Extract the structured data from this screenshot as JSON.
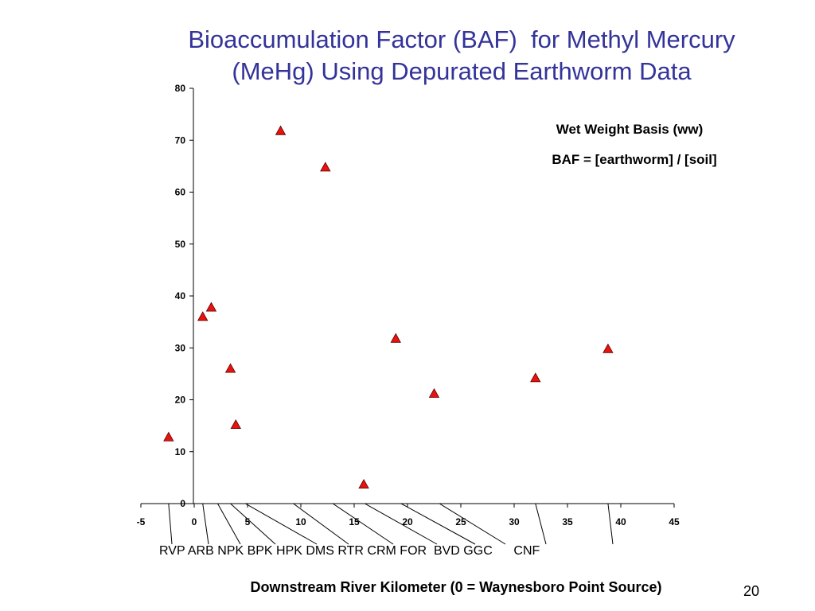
{
  "slide": {
    "title_line1": "Bioaccumulation Factor (BAF)  for Methyl Mercury",
    "title_line2": "(MeHg) Using Depurated Earthworm Data",
    "page_number": "20"
  },
  "chart_data": {
    "type": "scatter",
    "title": "",
    "xlabel": "Downstream River Kilometer (0 = Waynesboro Point Source)",
    "ylabel": "",
    "xlim": [
      -5,
      45
    ],
    "ylim": [
      0,
      80
    ],
    "x_ticks": [
      -5,
      0,
      5,
      10,
      15,
      20,
      25,
      30,
      35,
      40,
      45
    ],
    "y_ticks": [
      0,
      10,
      20,
      30,
      40,
      50,
      60,
      70,
      80
    ],
    "grid": false,
    "marker": "triangle",
    "marker_color": "#e8120e",
    "annotations": [
      "Wet Weight Basis (ww)",
      "BAF  =  [earthworm] / [soil]"
    ],
    "series": [
      {
        "points": [
          {
            "x": -2.4,
            "y": 12.8
          },
          {
            "x": 0.8,
            "y": 36.0
          },
          {
            "x": 1.6,
            "y": 37.8
          },
          {
            "x": 3.4,
            "y": 26.0
          },
          {
            "x": 3.9,
            "y": 15.2
          },
          {
            "x": 8.1,
            "y": 71.8
          },
          {
            "x": 12.3,
            "y": 64.8
          },
          {
            "x": 15.9,
            "y": 3.7
          },
          {
            "x": 18.9,
            "y": 31.8
          },
          {
            "x": 22.5,
            "y": 21.2
          },
          {
            "x": 32.0,
            "y": 24.2
          },
          {
            "x": 38.8,
            "y": 29.8
          }
        ]
      }
    ],
    "site_labels": [
      {
        "label": "RVP",
        "x": -2.4
      },
      {
        "label": "ARB",
        "x": 0.8
      },
      {
        "label": "NPK",
        "x": 2.2
      },
      {
        "label": "BPK",
        "x": 3.4
      },
      {
        "label": "HPK",
        "x": 4.8
      },
      {
        "label": "DMS",
        "x": 9.3
      },
      {
        "label": "RTR",
        "x": 13.0
      },
      {
        "label": "CRM",
        "x": 16.0
      },
      {
        "label": "FOR",
        "x": 19.4
      },
      {
        "label": "BVD",
        "x": 23.0
      },
      {
        "label": "GGC",
        "x": 32.0
      },
      {
        "label": "CNF",
        "x": 38.8
      }
    ],
    "site_label_row": "RVP ARB NPK BPK HPK DMS RTR CRM FOR  BVD GGC      CNF"
  }
}
